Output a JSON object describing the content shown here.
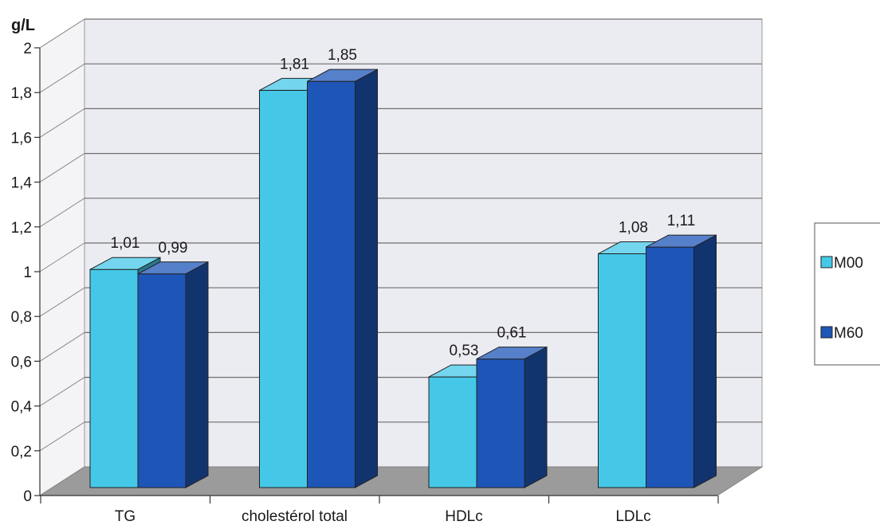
{
  "chart_data": {
    "type": "bar",
    "ylabel": "g/L",
    "ylim": [
      0,
      2
    ],
    "yticks": [
      "0",
      "0,2",
      "0,4",
      "0,6",
      "0,8",
      "1",
      "1,2",
      "1,4",
      "1,6",
      "1,8",
      "2"
    ],
    "categories": [
      "TG",
      "cholestérol total",
      "HDLc",
      "LDLc"
    ],
    "series": [
      {
        "name": "M00",
        "values": [
          1.01,
          1.81,
          0.53,
          1.08
        ],
        "labels": [
          "1,01",
          "1,81",
          "0,53",
          "1,08"
        ],
        "color": "#45C8E8"
      },
      {
        "name": "M60",
        "values": [
          0.99,
          1.85,
          0.61,
          1.11
        ],
        "labels": [
          "0,99",
          "1,85",
          "0,61",
          "1,11"
        ],
        "color": "#1E56B8"
      }
    ],
    "grid": true,
    "legend_position": "right",
    "style": "3d"
  }
}
